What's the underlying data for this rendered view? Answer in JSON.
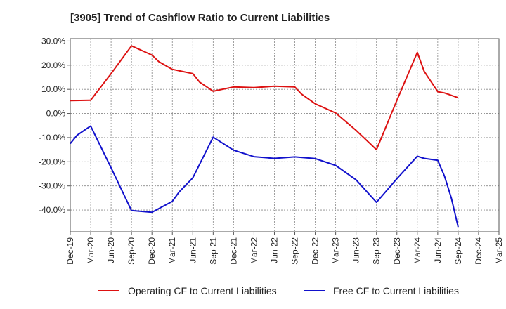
{
  "chart_data": {
    "type": "line",
    "title": "[3905]  Trend of Cashflow Ratio to Current Liabilities",
    "xlabel": "",
    "ylabel": "",
    "ylim": [
      -49,
      31
    ],
    "x_ticks": [
      "Dec-19",
      "Mar-20",
      "Jun-20",
      "Sep-20",
      "Dec-20",
      "Mar-21",
      "Jun-21",
      "Sep-21",
      "Dec-21",
      "Mar-22",
      "Jun-22",
      "Sep-22",
      "Dec-22",
      "Mar-23",
      "Jun-23",
      "Sep-23",
      "Dec-23",
      "Mar-24",
      "Jun-24",
      "Sep-24",
      "Dec-24",
      "Mar-25"
    ],
    "y_ticks": [
      30,
      20,
      10,
      0,
      -10,
      -20,
      -30,
      -40
    ],
    "y_tick_labels": [
      "30.0%",
      "20.0%",
      "10.0%",
      "0.0%",
      "-10.0%",
      "-20.0%",
      "-30.0%",
      "-40.0%"
    ],
    "grid": true,
    "legend_position": "bottom",
    "series": [
      {
        "name": "Operating CF to Current Liabilities",
        "color": "#dd1111",
        "x": [
          "Dec-19",
          "Mar-20",
          "Jun-20",
          "Sep-20",
          "Dec-20",
          "Jan-21",
          "Mar-21",
          "Jun-21",
          "Jul-21",
          "Sep-21",
          "Dec-21",
          "Mar-22",
          "Jun-22",
          "Sep-22",
          "Oct-22",
          "Dec-22",
          "Mar-23",
          "Jun-23",
          "Sep-23",
          "Dec-23",
          "Mar-24",
          "Apr-24",
          "Jun-24",
          "Jul-24",
          "Sep-24"
        ],
        "values": [
          5.3,
          5.5,
          16.5,
          28.0,
          24.2,
          21.5,
          18.3,
          16.5,
          13.0,
          9.2,
          11.0,
          10.7,
          11.3,
          11.0,
          8.0,
          4.0,
          0.2,
          -7.0,
          -15.0,
          5.5,
          25.3,
          17.5,
          9.0,
          8.5,
          6.5
        ]
      },
      {
        "name": "Free CF to Current Liabilities",
        "color": "#1111cc",
        "x": [
          "Dec-19",
          "Jan-20",
          "Mar-20",
          "Jun-20",
          "Sep-20",
          "Dec-20",
          "Mar-21",
          "Apr-21",
          "Jun-21",
          "Sep-21",
          "Dec-21",
          "Mar-22",
          "Jun-22",
          "Sep-22",
          "Dec-22",
          "Mar-23",
          "Jun-23",
          "Sep-23",
          "Dec-23",
          "Mar-24",
          "Apr-24",
          "Jun-24",
          "Jul-24",
          "Aug-24",
          "Sep-24"
        ],
        "values": [
          -12.5,
          -9.0,
          -5.2,
          -22.5,
          -40.2,
          -40.9,
          -36.4,
          -32.5,
          -26.7,
          -9.8,
          -15.2,
          -17.9,
          -18.6,
          -18.0,
          -18.7,
          -21.5,
          -27.5,
          -36.8,
          -27.0,
          -17.7,
          -18.6,
          -19.4,
          -26.0,
          -35.0,
          -47.0
        ]
      }
    ]
  }
}
